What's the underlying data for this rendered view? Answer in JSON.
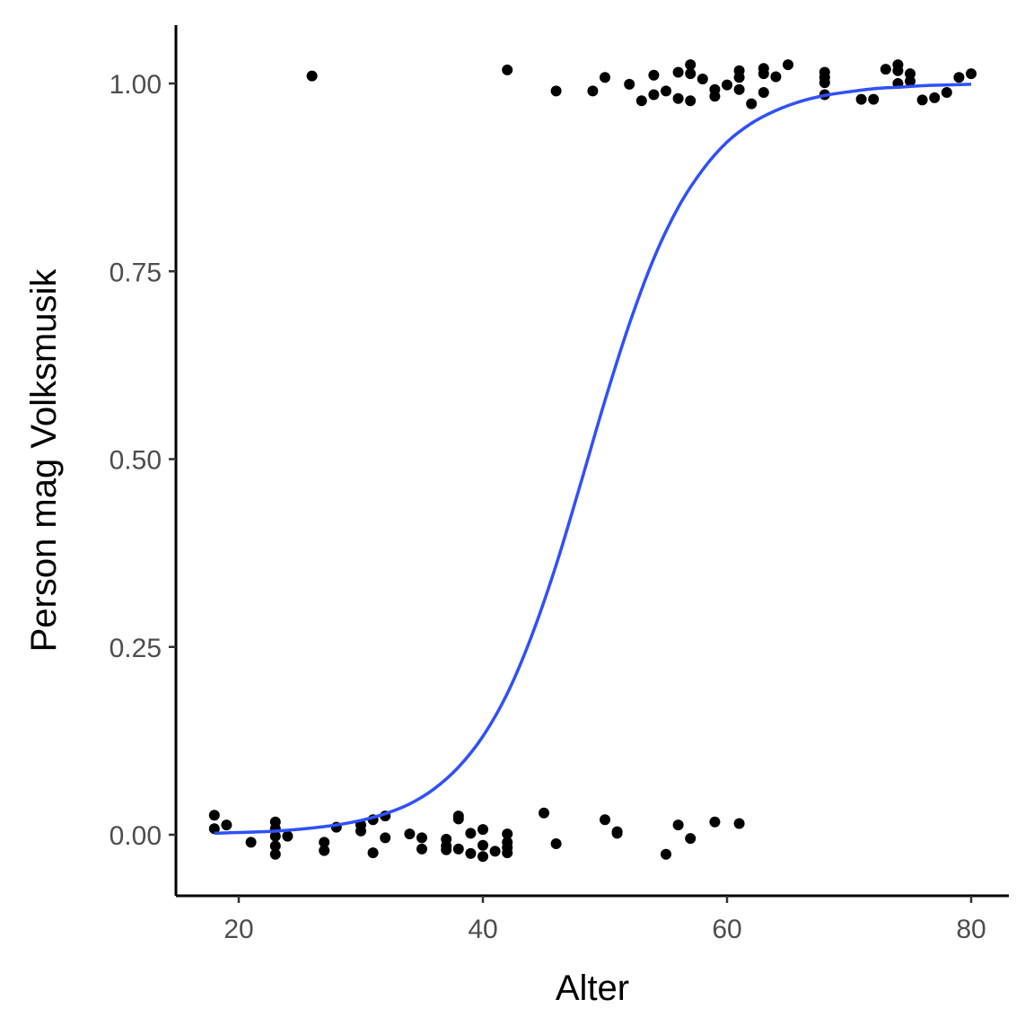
{
  "chart_data": {
    "type": "scatter",
    "xlabel": "Alter",
    "ylabel": "Person mag Volksmusik",
    "xlim": [
      15,
      83
    ],
    "ylim": [
      -0.08,
      1.08
    ],
    "xticks": [
      20,
      40,
      60,
      80
    ],
    "xtick_labels": [
      "20",
      "40",
      "60",
      "80"
    ],
    "yticks": [
      0,
      0.25,
      0.5,
      0.75,
      1
    ],
    "ytick_labels": [
      "0.00",
      "0.25",
      "0.50",
      "0.75",
      "1.00"
    ],
    "grid": false,
    "legend": "none",
    "points": [
      {
        "x": 18,
        "y": 0.026
      },
      {
        "x": 18,
        "y": 0.008
      },
      {
        "x": 19,
        "y": 0.013
      },
      {
        "x": 21,
        "y": -0.01
      },
      {
        "x": 23,
        "y": 0.017
      },
      {
        "x": 23,
        "y": 0.008
      },
      {
        "x": 23,
        "y": -0.002
      },
      {
        "x": 23,
        "y": -0.015
      },
      {
        "x": 23,
        "y": -0.026
      },
      {
        "x": 24,
        "y": -0.002
      },
      {
        "x": 27,
        "y": -0.01
      },
      {
        "x": 27,
        "y": -0.021
      },
      {
        "x": 28,
        "y": 0.01
      },
      {
        "x": 30,
        "y": 0.013
      },
      {
        "x": 30,
        "y": 0.005
      },
      {
        "x": 31,
        "y": 0.02
      },
      {
        "x": 31,
        "y": -0.024
      },
      {
        "x": 32,
        "y": 0.025
      },
      {
        "x": 32,
        "y": -0.004
      },
      {
        "x": 34,
        "y": 0.001
      },
      {
        "x": 35,
        "y": -0.004
      },
      {
        "x": 35,
        "y": -0.019
      },
      {
        "x": 37,
        "y": -0.006
      },
      {
        "x": 37,
        "y": -0.015
      },
      {
        "x": 37,
        "y": -0.02
      },
      {
        "x": 38,
        "y": 0.025
      },
      {
        "x": 38,
        "y": 0.021
      },
      {
        "x": 38,
        "y": -0.019
      },
      {
        "x": 39,
        "y": 0.002
      },
      {
        "x": 39,
        "y": -0.025
      },
      {
        "x": 40,
        "y": 0.007
      },
      {
        "x": 40,
        "y": -0.014
      },
      {
        "x": 40,
        "y": -0.029
      },
      {
        "x": 41,
        "y": -0.022
      },
      {
        "x": 42,
        "y": 0.001
      },
      {
        "x": 42,
        "y": -0.01
      },
      {
        "x": 42,
        "y": -0.017
      },
      {
        "x": 42,
        "y": -0.024
      },
      {
        "x": 45,
        "y": 0.029
      },
      {
        "x": 46,
        "y": -0.012
      },
      {
        "x": 50,
        "y": 0.02
      },
      {
        "x": 51,
        "y": 0.004
      },
      {
        "x": 51,
        "y": 0.002
      },
      {
        "x": 55,
        "y": -0.026
      },
      {
        "x": 56,
        "y": 0.013
      },
      {
        "x": 57,
        "y": -0.005
      },
      {
        "x": 59,
        "y": 0.017
      },
      {
        "x": 61,
        "y": 0.015
      },
      {
        "x": 26,
        "y": 1.01
      },
      {
        "x": 42,
        "y": 1.018
      },
      {
        "x": 46,
        "y": 0.99
      },
      {
        "x": 49,
        "y": 0.99
      },
      {
        "x": 50,
        "y": 1.008
      },
      {
        "x": 52,
        "y": 0.999
      },
      {
        "x": 53,
        "y": 0.977
      },
      {
        "x": 54,
        "y": 1.011
      },
      {
        "x": 54,
        "y": 0.985
      },
      {
        "x": 55,
        "y": 0.99
      },
      {
        "x": 56,
        "y": 1.015
      },
      {
        "x": 56,
        "y": 0.98
      },
      {
        "x": 57,
        "y": 1.025
      },
      {
        "x": 57,
        "y": 1.013
      },
      {
        "x": 57,
        "y": 0.977
      },
      {
        "x": 58,
        "y": 1.006
      },
      {
        "x": 59,
        "y": 0.992
      },
      {
        "x": 59,
        "y": 0.983
      },
      {
        "x": 60,
        "y": 0.998
      },
      {
        "x": 61,
        "y": 1.017
      },
      {
        "x": 61,
        "y": 1.008
      },
      {
        "x": 61,
        "y": 0.992
      },
      {
        "x": 62,
        "y": 0.973
      },
      {
        "x": 63,
        "y": 1.02
      },
      {
        "x": 63,
        "y": 1.013
      },
      {
        "x": 63,
        "y": 0.988
      },
      {
        "x": 64,
        "y": 1.009
      },
      {
        "x": 65,
        "y": 1.025
      },
      {
        "x": 68,
        "y": 1.015
      },
      {
        "x": 68,
        "y": 1.008
      },
      {
        "x": 68,
        "y": 1.001
      },
      {
        "x": 68,
        "y": 0.985
      },
      {
        "x": 71,
        "y": 0.979
      },
      {
        "x": 72,
        "y": 0.979
      },
      {
        "x": 73,
        "y": 1.019
      },
      {
        "x": 74,
        "y": 1.025
      },
      {
        "x": 74,
        "y": 1.017
      },
      {
        "x": 74,
        "y": 1.0
      },
      {
        "x": 75,
        "y": 1.013
      },
      {
        "x": 75,
        "y": 1.003
      },
      {
        "x": 76,
        "y": 0.978
      },
      {
        "x": 77,
        "y": 0.981
      },
      {
        "x": 78,
        "y": 0.988
      },
      {
        "x": 79,
        "y": 1.008
      },
      {
        "x": 80,
        "y": 1.013
      }
    ],
    "fit_curve": {
      "type": "logistic",
      "color": "#3050F8",
      "x": [
        18,
        20,
        22,
        24,
        26,
        28,
        30,
        32,
        34,
        36,
        38,
        40,
        42,
        44,
        46,
        48,
        50,
        52,
        54,
        56,
        58,
        60,
        62,
        64,
        66,
        68,
        70,
        72,
        74,
        76,
        78,
        80
      ],
      "y": [
        0.002,
        0.003,
        0.004,
        0.006,
        0.009,
        0.013,
        0.019,
        0.028,
        0.041,
        0.061,
        0.09,
        0.131,
        0.188,
        0.265,
        0.359,
        0.467,
        0.578,
        0.68,
        0.767,
        0.835,
        0.885,
        0.922,
        0.947,
        0.964,
        0.976,
        0.984,
        0.989,
        0.993,
        0.995,
        0.997,
        0.998,
        0.999
      ]
    },
    "point_color": "#000000"
  }
}
